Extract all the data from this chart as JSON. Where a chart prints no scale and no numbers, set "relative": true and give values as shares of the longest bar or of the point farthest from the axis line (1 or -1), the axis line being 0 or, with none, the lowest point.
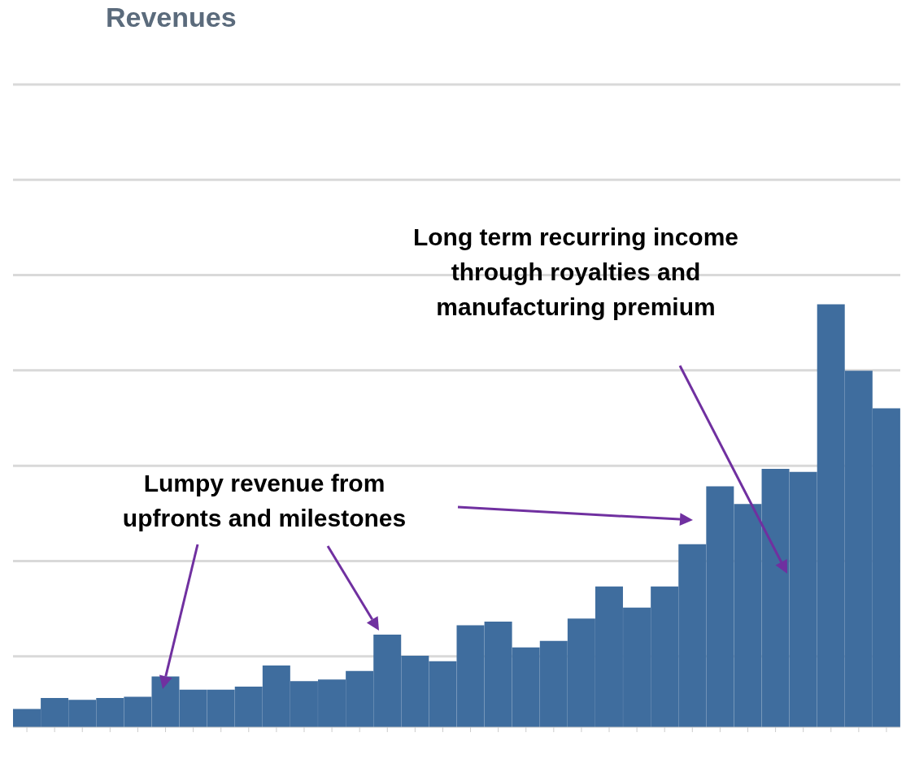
{
  "chart_data": {
    "type": "bar",
    "title": "Revenues",
    "relative": true,
    "grid": "y",
    "color": "#3f6d9e",
    "categories": [
      null,
      null,
      null,
      null,
      null,
      null,
      null,
      null,
      null,
      null,
      null,
      null,
      null,
      null,
      null,
      null,
      null,
      null,
      null,
      null,
      null,
      null,
      null,
      null,
      null,
      null,
      null,
      null,
      null,
      null,
      null,
      null
    ],
    "values": [
      0.043,
      0.069,
      0.065,
      0.069,
      0.072,
      0.12,
      0.089,
      0.089,
      0.096,
      0.146,
      0.109,
      0.113,
      0.133,
      0.219,
      0.169,
      0.156,
      0.241,
      0.25,
      0.189,
      0.204,
      0.257,
      0.333,
      0.283,
      0.333,
      0.433,
      0.57,
      0.528,
      0.611,
      0.604,
      1,
      0.843,
      0.754
    ],
    "annotations": [
      "Lumpy revenue from\nupfronts and milestones",
      "Long term recurring income\nthrough royalties and\nmanufacturing premium"
    ]
  }
}
